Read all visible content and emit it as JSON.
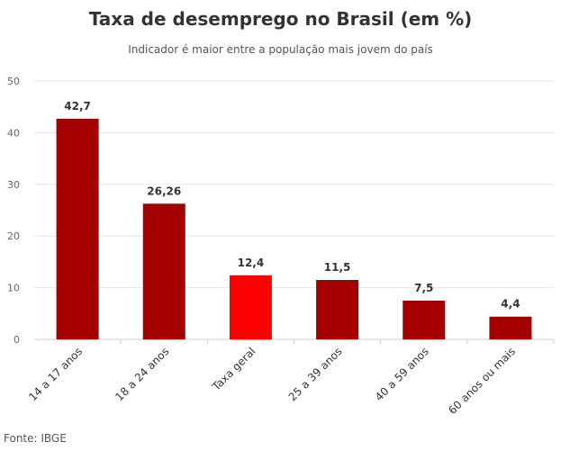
{
  "title": "Taxa de desemprego no Brasil (em %)",
  "subtitle": "Indicador é maior entre a população mais jovem do país",
  "source": "Fonte: IBGE",
  "colors": {
    "default": "#a50000",
    "highlight": "#ff0000",
    "grid": "#e6e6e6",
    "axis": "#cccccc"
  },
  "chart_data": {
    "type": "bar",
    "title": "Taxa de desemprego no Brasil (em %)",
    "subtitle": "Indicador é maior entre a população mais jovem do país",
    "xlabel": "",
    "ylabel": "",
    "ylim": [
      0,
      50
    ],
    "yticks": [
      0,
      10,
      20,
      30,
      40,
      50
    ],
    "grid": true,
    "categories": [
      "14 a 17 anos",
      "18 a 24 anos",
      "Taxa geral",
      "25 a 39 anos",
      "40 a 59 anos",
      "60 anos ou mais"
    ],
    "values": [
      42.7,
      26.26,
      12.4,
      11.5,
      7.5,
      4.4
    ],
    "value_labels": [
      "42,7",
      "26,26",
      "12,4",
      "11,5",
      "7,5",
      "4,4"
    ],
    "highlight_category": "Taxa geral"
  }
}
